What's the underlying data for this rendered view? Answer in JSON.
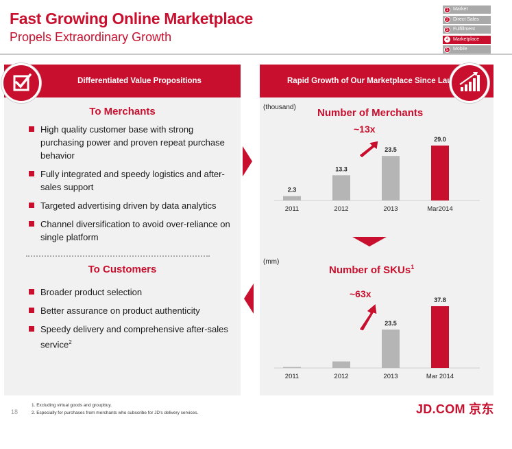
{
  "header": {
    "title": "Fast Growing Online Marketplace",
    "subtitle": "Propels Extraordinary Growth"
  },
  "nav": {
    "items": [
      {
        "num": "1",
        "label": "Market",
        "active": false
      },
      {
        "num": "2",
        "label": "Direct Sales",
        "active": false
      },
      {
        "num": "3",
        "label": "Fulfillment",
        "active": false
      },
      {
        "num": "4",
        "label": "Marketplace",
        "active": true
      },
      {
        "num": "5",
        "label": "Mobile",
        "active": false
      }
    ]
  },
  "left_panel": {
    "header": "Differentiated Value Propositions",
    "icon": "checkbox-icon",
    "merchants": {
      "title": "To Merchants",
      "bullets": [
        "High quality customer base with strong purchasing power and proven repeat purchase behavior",
        "Fully integrated and speedy logistics and after-sales support",
        "Targeted advertising driven by data analytics",
        "Channel diversification to avoid over-reliance on single platform"
      ]
    },
    "customers": {
      "title": "To Customers",
      "bullets": [
        "Broader product selection",
        "Better assurance on product authenticity",
        "Speedy delivery and comprehensive after-sales service"
      ],
      "last_bullet_sup": "2"
    }
  },
  "right_panel": {
    "header": "Rapid Growth of Our Marketplace Since Launch",
    "icon": "bar-growth-icon"
  },
  "chart_data": [
    {
      "type": "bar",
      "title": "Number of Merchants",
      "unit": "(thousand)",
      "annotation": "~13x",
      "categories": [
        "2011",
        "2012",
        "2013",
        "Mar2014"
      ],
      "values": [
        2.3,
        13.3,
        23.5,
        29.0
      ],
      "labels": [
        "2.3",
        "13.3",
        "23.5",
        "29.0"
      ],
      "highlight_index": 3
    },
    {
      "type": "bar",
      "title": "Number of SKUs",
      "title_sup": "1",
      "unit": "(mm)",
      "annotation": "~63x",
      "categories": [
        "2011",
        "2012",
        "2013",
        "Mar 2014"
      ],
      "values": [
        0.6,
        4.0,
        23.5,
        37.8
      ],
      "labels": [
        "",
        "",
        "23.5",
        "37.8"
      ],
      "highlight_index": 3
    }
  ],
  "footer": {
    "page": "18",
    "notes": [
      "1. Excluding virtual goods and groupbuy.",
      "2. Especially for purchases from merchants who subscribe for JD's delivery services."
    ],
    "logo": "JD.COM 京东"
  },
  "colors": {
    "accent": "#c8102e",
    "bar_gray": "#b5b5b5",
    "panel_bg": "#f1f1f1"
  }
}
